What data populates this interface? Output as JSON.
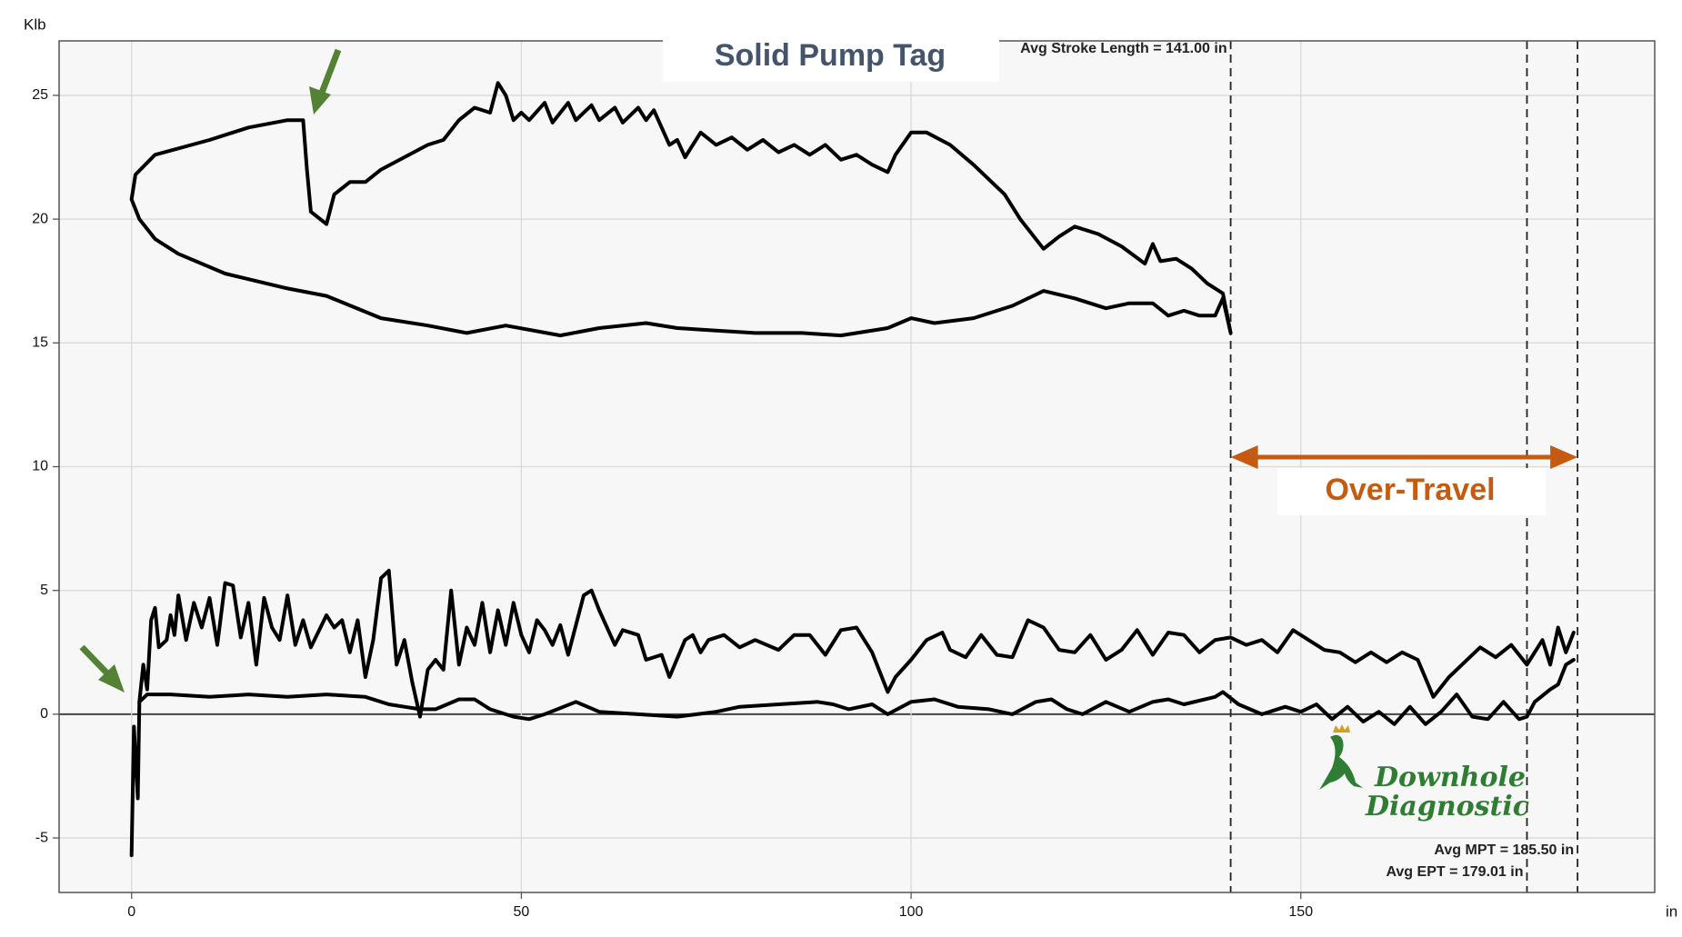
{
  "chart_data": {
    "type": "line",
    "title": "Solid Pump Tag",
    "ylabel": "Klb",
    "xlabel": "in",
    "annotation": "Over-Travel",
    "logo_lines": [
      "Downhole",
      "Diagnostic"
    ],
    "xlim": [
      -9.3,
      195.4
    ],
    "ylim": [
      -7.2,
      27.2
    ],
    "xticks": [
      0,
      50,
      100,
      150
    ],
    "yticks": [
      -5,
      0,
      5,
      10,
      15,
      20,
      25
    ],
    "grid": true,
    "markers": [
      {
        "value": 141,
        "label": "Avg Stroke Length = 141.00 in"
      },
      {
        "value": 185.5,
        "label": "Avg MPT = 185.50 in"
      },
      {
        "value": 179.01,
        "label": "Avg EPT = 179.01 in"
      }
    ],
    "series": [
      {
        "color": "#000000",
        "x": [
          0,
          0.5,
          3,
          10,
          15,
          20,
          22,
          22.5,
          23,
          25,
          26,
          28,
          30,
          32,
          35,
          38,
          40,
          42,
          44,
          46,
          47,
          48,
          49,
          50,
          51,
          53,
          54,
          56,
          57,
          59,
          60,
          62,
          63,
          65,
          66,
          67,
          69,
          70,
          71,
          73,
          75,
          77,
          79,
          81,
          83,
          85,
          87,
          89,
          91,
          93,
          95,
          97,
          98,
          100,
          102,
          105,
          108,
          112,
          114,
          117,
          119,
          121,
          124,
          127,
          130,
          131,
          132,
          134,
          136,
          138,
          140,
          141,
          140,
          139,
          137,
          135,
          133,
          131,
          128,
          125,
          121,
          117,
          113,
          108,
          103,
          100,
          97,
          91,
          86,
          80,
          75,
          70,
          66,
          60,
          55,
          48,
          43,
          38,
          32,
          25,
          20,
          12,
          6,
          3,
          1,
          0
        ],
        "values": [
          20.8,
          21.8,
          22.6,
          23.2,
          23.7,
          24,
          24,
          22,
          20.3,
          19.8,
          21,
          21.5,
          21.5,
          22,
          22.5,
          23,
          23.2,
          24,
          24.5,
          24.3,
          25.5,
          25,
          24,
          24.3,
          24,
          24.7,
          23.9,
          24.7,
          24,
          24.6,
          24,
          24.5,
          23.9,
          24.5,
          24,
          24.4,
          23,
          23.2,
          22.5,
          23.5,
          23,
          23.3,
          22.8,
          23.2,
          22.7,
          23,
          22.6,
          23,
          22.4,
          22.6,
          22.2,
          21.9,
          22.6,
          23.5,
          23.5,
          23,
          22.2,
          21,
          20,
          18.8,
          19.3,
          19.7,
          19.4,
          18.9,
          18.2,
          19,
          18.3,
          18.4,
          18,
          17.4,
          17,
          15.4,
          16.8,
          16.1,
          16.1,
          16.3,
          16.1,
          16.6,
          16.6,
          16.4,
          16.8,
          17.1,
          16.5,
          16,
          15.8,
          16,
          15.6,
          15.3,
          15.4,
          15.4,
          15.5,
          15.6,
          15.8,
          15.6,
          15.3,
          15.7,
          15.4,
          15.7,
          16,
          16.9,
          17.2,
          17.8,
          18.6,
          19.2,
          20,
          20.8
        ]
      },
      {
        "color": "#000000",
        "x": [
          0,
          0.3,
          0.8,
          1,
          1.5,
          2,
          2.5,
          3,
          3.5,
          4.5,
          5,
          5.5,
          6,
          7,
          8,
          9,
          10,
          11,
          12,
          13,
          14,
          15,
          16,
          17,
          18,
          19,
          20,
          21,
          22,
          23,
          25,
          26,
          27,
          28,
          29,
          30,
          31,
          32,
          33,
          34,
          35,
          36,
          37,
          38,
          39,
          40,
          41,
          42,
          43,
          44,
          45,
          46,
          47,
          48,
          49,
          50,
          51,
          52,
          53,
          54,
          55,
          56,
          58,
          59,
          60,
          62,
          63,
          65,
          66,
          68,
          69,
          71,
          72,
          73,
          74,
          76,
          78,
          80,
          83,
          85,
          87,
          89,
          91,
          93,
          95,
          97,
          98,
          100,
          102,
          104,
          105,
          107,
          109,
          111,
          113,
          115,
          117,
          119,
          121,
          123,
          125,
          127,
          129,
          131,
          133,
          135,
          137,
          139,
          141,
          143,
          145,
          147,
          149,
          151,
          153,
          155,
          157,
          159,
          161,
          163,
          165,
          167,
          169,
          171,
          173,
          175,
          177,
          179,
          181,
          182,
          183,
          184,
          185
        ],
        "values": [
          -5.7,
          -0.5,
          -3.4,
          0.5,
          2,
          1,
          3.8,
          4.3,
          2.7,
          3,
          4,
          3.2,
          4.8,
          3,
          4.5,
          3.5,
          4.7,
          2.8,
          5.3,
          5.2,
          3.1,
          4.5,
          2,
          4.7,
          3.5,
          3,
          4.8,
          2.8,
          3.8,
          2.7,
          4,
          3.5,
          3.8,
          2.5,
          3.8,
          1.5,
          3,
          5.5,
          5.8,
          2,
          3,
          1.3,
          -0.1,
          1.8,
          2.2,
          1.8,
          5,
          2,
          3.5,
          2.8,
          4.5,
          2.5,
          4.2,
          2.8,
          4.5,
          3.2,
          2.5,
          3.8,
          3.4,
          2.8,
          3.6,
          2.4,
          4.8,
          5,
          4.2,
          2.8,
          3.4,
          3.2,
          2.2,
          2.4,
          1.5,
          3,
          3.2,
          2.5,
          3,
          3.2,
          2.7,
          3,
          2.6,
          3.2,
          3.2,
          2.4,
          3.4,
          3.5,
          2.5,
          0.9,
          1.5,
          2.2,
          3,
          3.3,
          2.6,
          2.3,
          3.2,
          2.4,
          2.3,
          3.8,
          3.5,
          2.6,
          2.5,
          3.2,
          2.2,
          2.6,
          3.4,
          2.4,
          3.3,
          3.2,
          2.5,
          3,
          3.1,
          2.8,
          3,
          2.5,
          3.4,
          3,
          2.6,
          2.5,
          2.1,
          2.5,
          2.1,
          2.5,
          2.2,
          0.7,
          1.5,
          2.1,
          2.7,
          2.3,
          2.8,
          2,
          3,
          2,
          3.5,
          2.5,
          3.3
        ]
      },
      {
        "color": "#000000",
        "x": [
          1,
          2,
          5,
          10,
          15,
          20,
          25,
          30,
          33,
          35,
          37,
          39,
          42,
          44,
          46,
          49,
          51,
          53,
          57,
          60,
          65,
          70,
          75,
          78,
          83,
          88,
          90,
          92,
          95,
          97,
          100,
          103,
          106,
          110,
          113,
          116,
          118,
          120,
          122,
          125,
          128,
          131,
          133,
          135,
          139,
          140,
          142,
          145,
          148,
          150,
          152,
          154,
          156,
          158,
          160,
          162,
          164,
          166,
          168,
          170,
          172,
          174,
          176,
          178,
          179,
          180,
          182,
          183,
          184,
          185
        ],
        "values": [
          0.5,
          0.8,
          0.8,
          0.7,
          0.8,
          0.7,
          0.8,
          0.7,
          0.4,
          0.3,
          0.2,
          0.2,
          0.6,
          0.6,
          0.2,
          -0.1,
          -0.2,
          0,
          0.5,
          0.1,
          0,
          -0.1,
          0.1,
          0.3,
          0.4,
          0.5,
          0.4,
          0.2,
          0.4,
          0,
          0.5,
          0.6,
          0.3,
          0.2,
          0,
          0.5,
          0.6,
          0.2,
          0,
          0.5,
          0.1,
          0.5,
          0.6,
          0.4,
          0.7,
          0.9,
          0.4,
          0,
          0.3,
          0.1,
          0.4,
          -0.2,
          0.3,
          -0.3,
          0.1,
          -0.4,
          0.3,
          -0.4,
          0.1,
          0.8,
          -0.1,
          -0.2,
          0.5,
          -0.2,
          -0.1,
          0.5,
          1,
          1.2,
          2,
          2.2
        ]
      }
    ]
  }
}
